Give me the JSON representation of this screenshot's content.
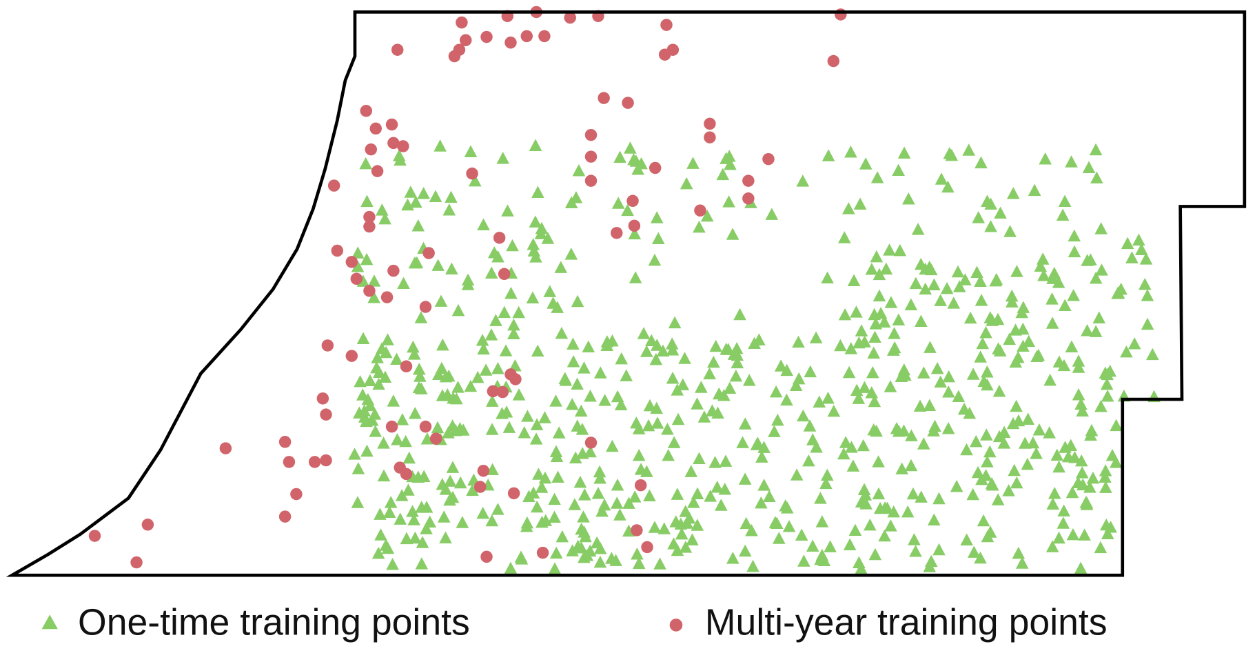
{
  "legend": {
    "items": [
      {
        "label": "One-time training points"
      },
      {
        "label": "Multi-year training points"
      }
    ]
  }
}
